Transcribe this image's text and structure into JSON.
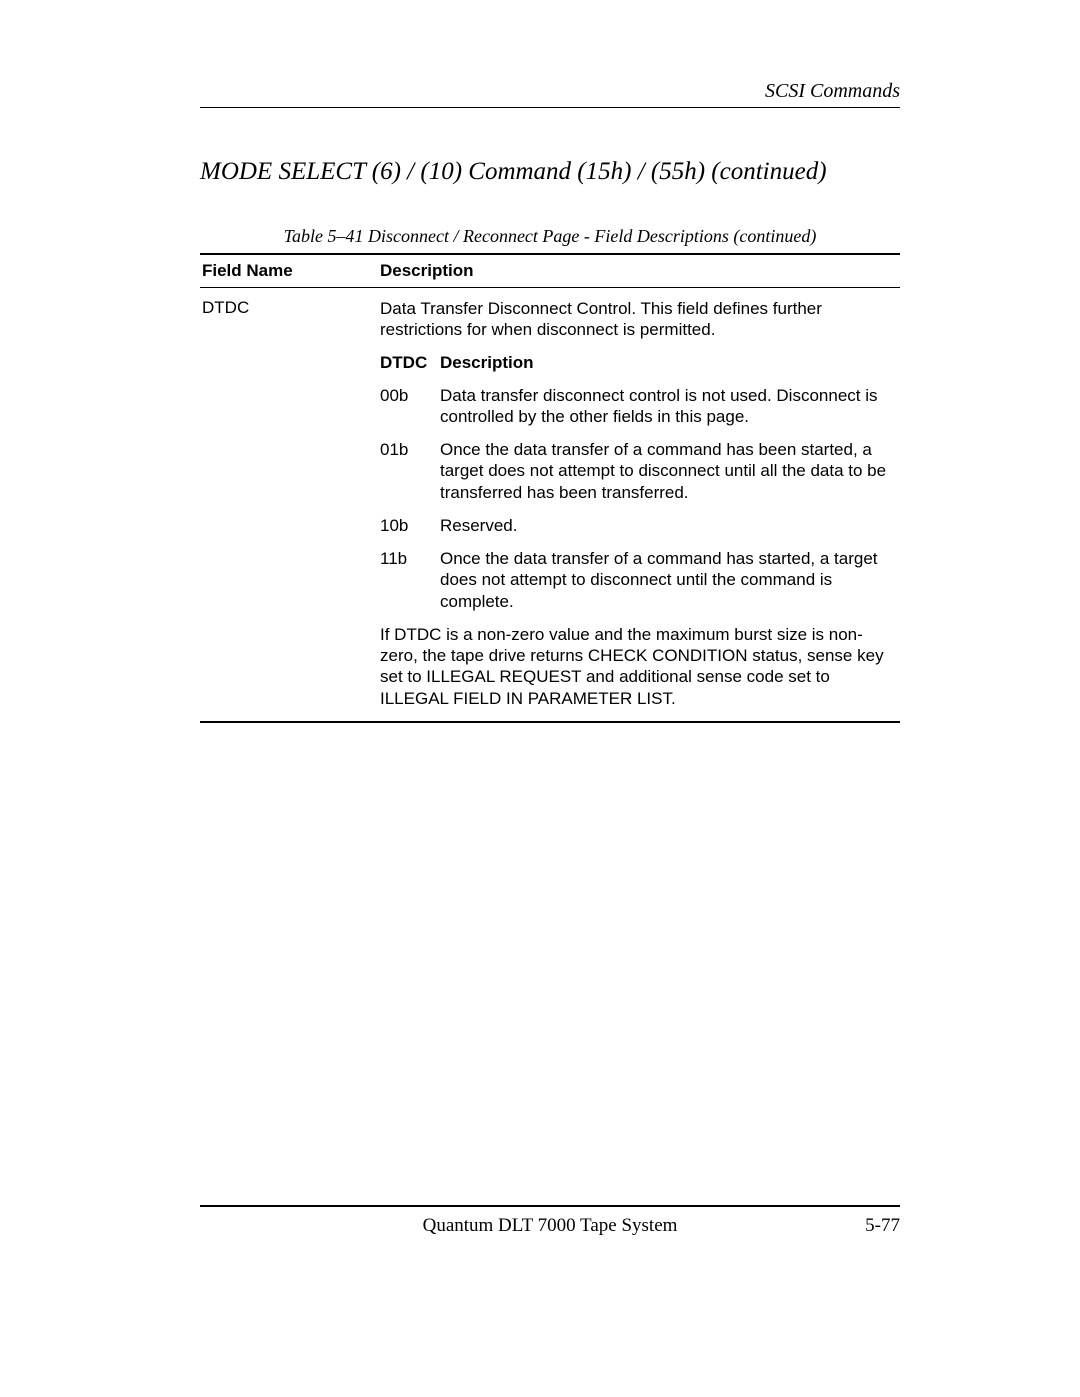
{
  "header": {
    "chapter": "SCSI Commands"
  },
  "section": {
    "title": "MODE SELECT (6) / (10) Command (15h) / (55h)   (continued)"
  },
  "table": {
    "caption": "Table 5–41  Disconnect / Reconnect Page - Field Descriptions (continued)",
    "columns": {
      "field": "Field Name",
      "desc": "Description"
    },
    "row": {
      "field_name": "DTDC",
      "description_intro": "Data Transfer Disconnect Control. This field defines further restrictions for when disconnect is permitted.",
      "sub_columns": {
        "c1": "DTDC",
        "c2": "Description"
      },
      "sub_rows": [
        {
          "code": "00b",
          "text": "Data transfer disconnect control is not used. Disconnect is controlled by the other fields in this page."
        },
        {
          "code": "01b",
          "text": "Once the data transfer of a command has been started, a target does not attempt to disconnect until all the data to be transferred has been transferred."
        },
        {
          "code": "10b",
          "text": "Reserved."
        },
        {
          "code": "11b",
          "text": "Once the data transfer of a command has started, a target does not attempt to disconnect until the command is complete."
        }
      ],
      "note": "If DTDC is a non-zero value and the maximum burst size is non-zero, the tape drive returns CHECK CONDITION status, sense key set to ILLEGAL REQUEST and additional sense code set to ILLEGAL FIELD IN PARAMETER LIST."
    }
  },
  "footer": {
    "center": "Quantum DLT 7000 Tape System",
    "page": "5-77"
  }
}
